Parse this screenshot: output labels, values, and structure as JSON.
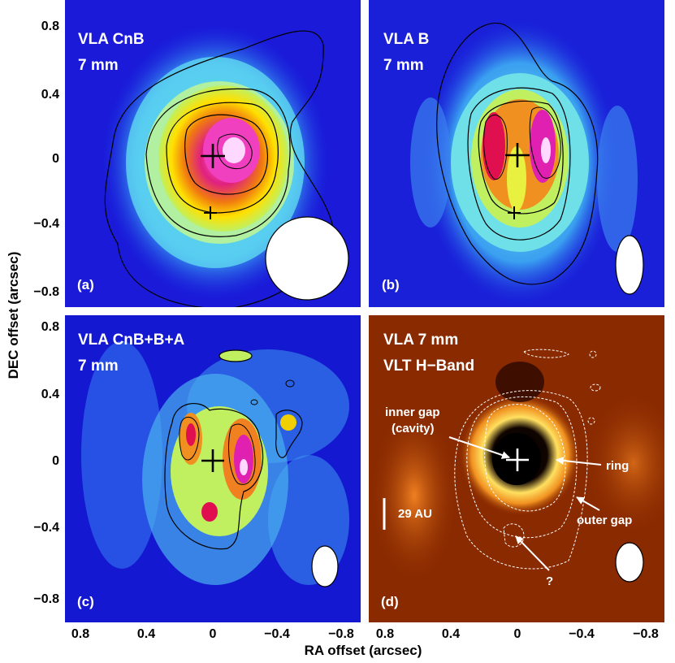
{
  "figure": {
    "y_axis_label": "DEC offset (arcsec)",
    "x_axis_label": "RA offset (arcsec)",
    "y_ticks": [
      "0.8",
      "0.4",
      "0",
      "−0.4",
      "−0.8"
    ],
    "x_ticks": [
      "0.8",
      "0.4",
      "0",
      "−0.4",
      "−0.8"
    ]
  },
  "panels": {
    "a": {
      "letter": "(a)",
      "title_line1": "VLA CnB",
      "title_line2": "7 mm"
    },
    "b": {
      "letter": "(b)",
      "title_line1": "VLA B",
      "title_line2": "7 mm"
    },
    "c": {
      "letter": "(c)",
      "title_line1": "VLA CnB+B+A",
      "title_line2": "7 mm"
    },
    "d": {
      "letter": "(d)",
      "title_line1": "VLA 7 mm",
      "title_line2": "VLT H−Band",
      "annotations": {
        "inner_gap_1": "inner gap",
        "inner_gap_2": "(cavity)",
        "ring": "ring",
        "outer_gap": "outer gap",
        "scale_bar": "29 AU",
        "question": "?"
      }
    }
  },
  "colors": {
    "deep_blue": "#1010d8",
    "cyan": "#7fe8f0",
    "yellow": "#f0f000",
    "red": "#e01020",
    "magenta": "#e020b0",
    "brown_bg": "#8a2a00",
    "orange": "#e08010"
  }
}
